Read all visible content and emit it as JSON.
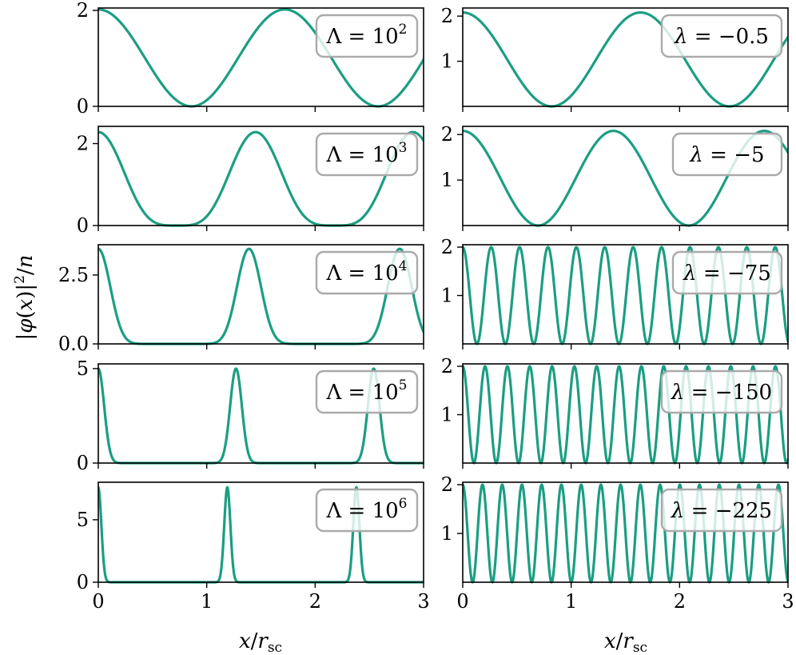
{
  "chart_data": {
    "type": "line",
    "line_color": "#1b9e82",
    "xlabel": "x/r_sc",
    "ylabel": "|φ(x)|²/n",
    "x_ticks": [
      "0",
      "1",
      "2",
      "3"
    ],
    "xlim": [
      0,
      3
    ],
    "panels": [
      {
        "column": "left",
        "legend_symbol": "Λ",
        "legend_base": "= 10",
        "legend_exp": "2",
        "ylim": [
          0,
          2.05
        ],
        "yticks": [
          0,
          2
        ],
        "ytick_labels": [
          "0",
          "2"
        ],
        "curve": {
          "kind": "cosine_power",
          "amplitude": 2.02,
          "period": 1.72,
          "power": 1
        }
      },
      {
        "column": "left",
        "legend_symbol": "Λ",
        "legend_base": "= 10",
        "legend_exp": "3",
        "ylim": [
          0,
          2.42
        ],
        "yticks": [
          0,
          2
        ],
        "ytick_labels": [
          "0",
          "2"
        ],
        "curve": {
          "kind": "cosine_power",
          "amplitude": 2.28,
          "period": 1.45,
          "power": 2
        }
      },
      {
        "column": "left",
        "legend_symbol": "Λ",
        "legend_base": "= 10",
        "legend_exp": "4",
        "ylim": [
          0,
          3.6
        ],
        "yticks": [
          0,
          2.5
        ],
        "ytick_labels": [
          "0.0",
          "2.5"
        ],
        "curve": {
          "kind": "cosine_power",
          "amplitude": 3.45,
          "period": 1.39,
          "power": 8
        }
      },
      {
        "column": "left",
        "legend_symbol": "Λ",
        "legend_base": "= 10",
        "legend_exp": "5",
        "ylim": [
          0,
          5.25
        ],
        "yticks": [
          0,
          5
        ],
        "ytick_labels": [
          "0",
          "5"
        ],
        "curve": {
          "kind": "cosine_power",
          "amplitude": 5.0,
          "period": 1.27,
          "power": 28
        }
      },
      {
        "column": "left",
        "legend_symbol": "Λ",
        "legend_base": "= 10",
        "legend_exp": "6",
        "ylim": [
          0,
          8.0
        ],
        "yticks": [
          0,
          5
        ],
        "ytick_labels": [
          "0",
          "5"
        ],
        "curve": {
          "kind": "cosine_power",
          "amplitude": 7.6,
          "period": 1.19,
          "power": 90
        }
      },
      {
        "column": "right",
        "legend_symbol": "λ",
        "legend_base": "= −0.5",
        "legend_exp": "",
        "ylim": [
          0,
          2.18
        ],
        "yticks": [
          1,
          2
        ],
        "ytick_labels": [
          "1",
          "2"
        ],
        "curve": {
          "kind": "cosine_power",
          "amplitude": 2.08,
          "period": 1.64,
          "power": 1
        }
      },
      {
        "column": "right",
        "legend_symbol": "λ",
        "legend_base": "= −5",
        "legend_exp": "",
        "ylim": [
          0,
          2.18
        ],
        "yticks": [
          1,
          2
        ],
        "ytick_labels": [
          "1",
          "2"
        ],
        "curve": {
          "kind": "cosine_power",
          "amplitude": 2.08,
          "period": 1.39,
          "power": 1
        }
      },
      {
        "column": "right",
        "legend_symbol": "λ",
        "legend_base": "= −75",
        "legend_exp": "",
        "ylim": [
          0,
          2.05
        ],
        "yticks": [
          1,
          2
        ],
        "ytick_labels": [
          "1",
          "2"
        ],
        "curve": {
          "kind": "cosine_power",
          "amplitude": 2.0,
          "period": 0.262,
          "power": 1
        }
      },
      {
        "column": "right",
        "legend_symbol": "λ",
        "legend_base": "= −150",
        "legend_exp": "",
        "ylim": [
          0,
          2.05
        ],
        "yticks": [
          1,
          2
        ],
        "ytick_labels": [
          "1",
          "2"
        ],
        "curve": {
          "kind": "cosine_power",
          "amplitude": 2.0,
          "period": 0.206,
          "power": 1
        }
      },
      {
        "column": "right",
        "legend_symbol": "λ",
        "legend_base": "= −225",
        "legend_exp": "",
        "ylim": [
          0,
          2.05
        ],
        "yticks": [
          1,
          2
        ],
        "ytick_labels": [
          "1",
          "2"
        ],
        "curve": {
          "kind": "cosine_power",
          "amplitude": 2.0,
          "period": 0.182,
          "power": 1
        }
      }
    ]
  }
}
